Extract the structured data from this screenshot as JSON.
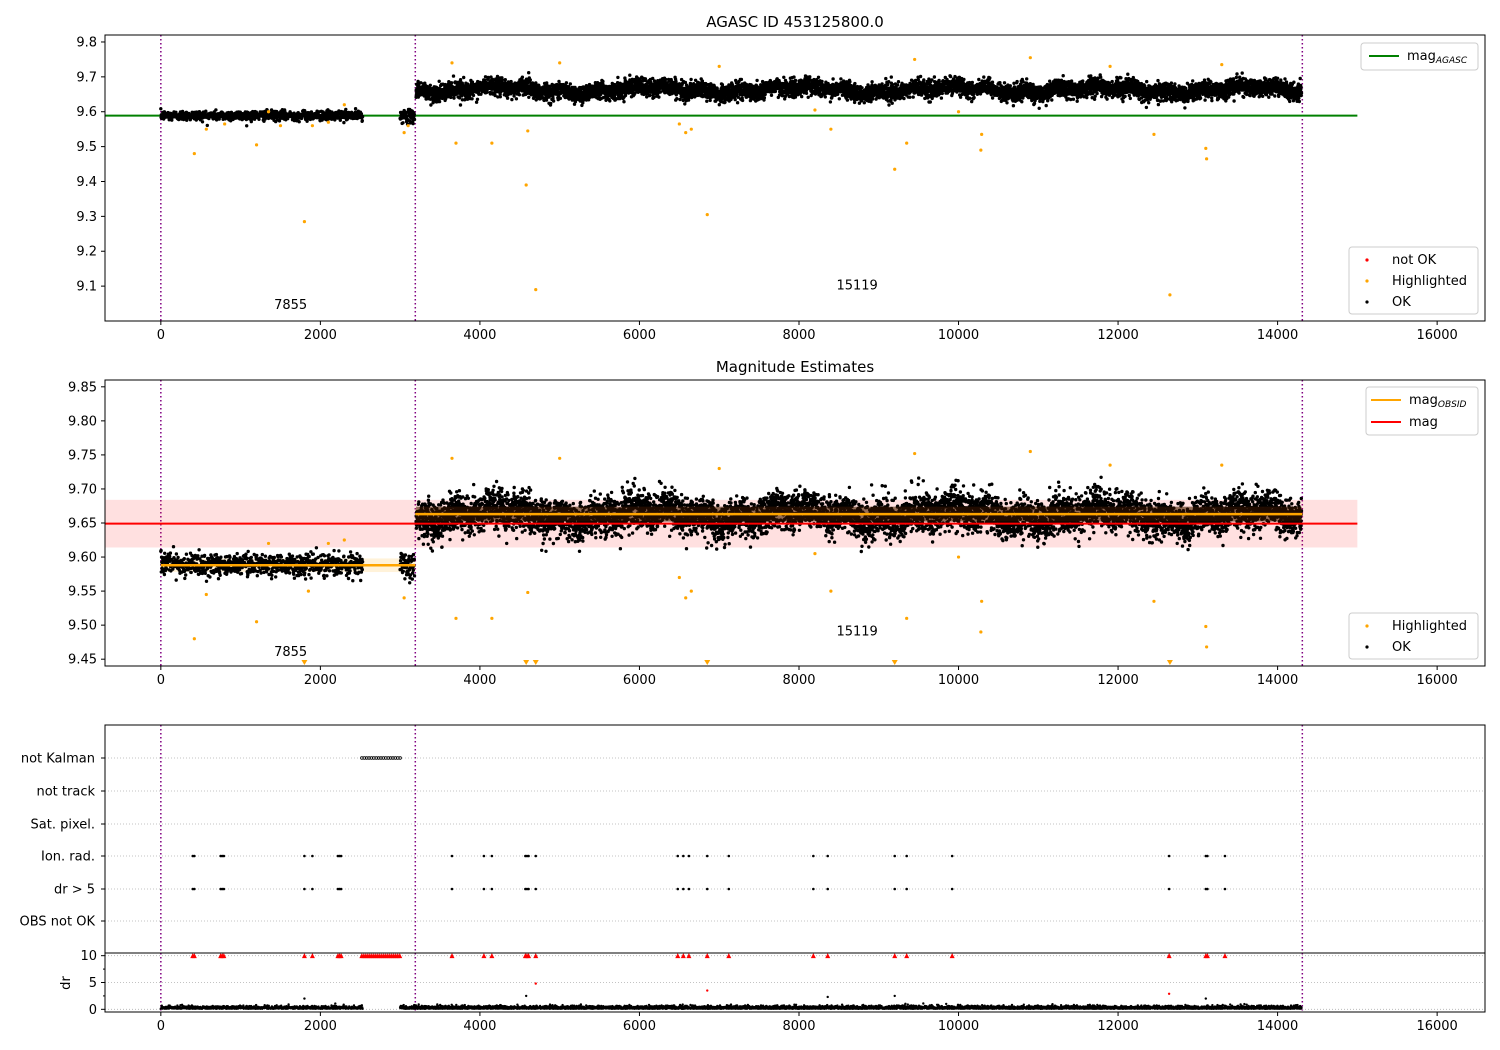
{
  "chart_data": [
    {
      "type": "scatter",
      "title": "AGASC ID 453125800.0",
      "xlim": [
        -700,
        16600
      ],
      "ylim": [
        9.0,
        9.82
      ],
      "xticks": [
        0,
        2000,
        4000,
        6000,
        8000,
        10000,
        12000,
        14000,
        16000
      ],
      "yticks": [
        9.1,
        9.2,
        9.3,
        9.4,
        9.5,
        9.6,
        9.7,
        9.8
      ],
      "segment_boundaries": [
        0,
        3190,
        14310
      ],
      "obsid_labels": [
        {
          "text": "7855",
          "x": 1420,
          "y": 9.035
        },
        {
          "text": "15119",
          "x": 8470,
          "y": 9.09
        }
      ],
      "mag_agasc": {
        "value": 9.589,
        "x_range": [
          -700,
          15000
        ]
      },
      "series": [
        {
          "name": "not OK",
          "color": "#ff0000",
          "points": []
        },
        {
          "name": "Highlighted",
          "color": "#ffa500",
          "points": [
            [
              420,
              9.48
            ],
            [
              570,
              9.55
            ],
            [
              800,
              9.565
            ],
            [
              1200,
              9.505
            ],
            [
              1350,
              9.6
            ],
            [
              1500,
              9.56
            ],
            [
              1800,
              9.285
            ],
            [
              1900,
              9.56
            ],
            [
              2100,
              9.57
            ],
            [
              2300,
              9.62
            ],
            [
              3050,
              9.54
            ],
            [
              3100,
              9.56
            ],
            [
              3650,
              9.74
            ],
            [
              3700,
              9.51
            ],
            [
              4150,
              9.51
            ],
            [
              4580,
              9.39
            ],
            [
              4600,
              9.545
            ],
            [
              4700,
              9.09
            ],
            [
              5000,
              9.74
            ],
            [
              6500,
              9.565
            ],
            [
              6580,
              9.54
            ],
            [
              6650,
              9.55
            ],
            [
              6850,
              9.305
            ],
            [
              7000,
              9.73
            ],
            [
              8200,
              9.605
            ],
            [
              8400,
              9.55
            ],
            [
              9200,
              9.435
            ],
            [
              9350,
              9.51
            ],
            [
              9450,
              9.75
            ],
            [
              10000,
              9.6
            ],
            [
              10280,
              9.49
            ],
            [
              10290,
              9.535
            ],
            [
              10900,
              9.755
            ],
            [
              11900,
              9.73
            ],
            [
              12450,
              9.535
            ],
            [
              12650,
              9.075
            ],
            [
              13100,
              9.495
            ],
            [
              13110,
              9.465
            ],
            [
              13300,
              9.735
            ]
          ]
        },
        {
          "name": "OK",
          "color": "#000000",
          "points": []
        }
      ],
      "legend": [
        {
          "label": "mag",
          "sub": "AGASC",
          "color": "#008000"
        }
      ],
      "legend_points": [
        "not OK",
        "Highlighted",
        "OK"
      ]
    },
    {
      "type": "scatter",
      "title": "Magnitude Estimates",
      "xlim": [
        -700,
        16600
      ],
      "ylim": [
        9.44,
        9.86
      ],
      "xticks": [
        0,
        2000,
        4000,
        6000,
        8000,
        10000,
        12000,
        14000,
        16000
      ],
      "yticks": [
        9.45,
        9.5,
        9.55,
        9.6,
        9.65,
        9.7,
        9.75,
        9.8,
        9.85
      ],
      "ytick_labels": [
        "9.45",
        "9.50",
        "9.55",
        "9.60",
        "9.65",
        "9.70",
        "9.75",
        "9.80",
        "9.85"
      ],
      "segment_boundaries": [
        0,
        3190,
        14310
      ],
      "obsid_labels": [
        {
          "text": "7855",
          "x": 1420,
          "y": 9.455
        },
        {
          "text": "15119",
          "x": 8470,
          "y": 9.485
        }
      ],
      "mag": {
        "value": 9.649,
        "band": [
          9.614,
          9.684
        ],
        "x_range": [
          -700,
          15000
        ]
      },
      "mag_obsid": [
        {
          "x_range": [
            0,
            3190
          ],
          "value": 9.588,
          "band": [
            9.578,
            9.598
          ]
        },
        {
          "x_range": [
            3190,
            14310
          ],
          "value": 9.663,
          "band": [
            9.653,
            9.673
          ]
        }
      ],
      "highlighted_points": [
        [
          420,
          9.48
        ],
        [
          570,
          9.545
        ],
        [
          1200,
          9.505
        ],
        [
          1350,
          9.62
        ],
        [
          1850,
          9.55
        ],
        [
          2100,
          9.62
        ],
        [
          2300,
          9.625
        ],
        [
          3050,
          9.54
        ],
        [
          3650,
          9.745
        ],
        [
          3700,
          9.51
        ],
        [
          4150,
          9.51
        ],
        [
          4600,
          9.548
        ],
        [
          5000,
          9.745
        ],
        [
          6500,
          9.57
        ],
        [
          6580,
          9.54
        ],
        [
          6650,
          9.55
        ],
        [
          7000,
          9.73
        ],
        [
          8200,
          9.605
        ],
        [
          8400,
          9.55
        ],
        [
          9350,
          9.51
        ],
        [
          9450,
          9.752
        ],
        [
          10000,
          9.6
        ],
        [
          10280,
          9.49
        ],
        [
          10290,
          9.535
        ],
        [
          10900,
          9.755
        ],
        [
          11900,
          9.735
        ],
        [
          12450,
          9.535
        ],
        [
          13100,
          9.498
        ],
        [
          13110,
          9.468
        ],
        [
          13300,
          9.735
        ]
      ],
      "below_range_x": [
        1800,
        4580,
        4700,
        6850,
        9200,
        12650
      ],
      "legend": [
        {
          "label": "mag",
          "sub": "OBSID",
          "color": "#ffa500"
        },
        {
          "label": "mag",
          "sub": "",
          "color": "#ff0000"
        }
      ],
      "legend_points": [
        "Highlighted",
        "OK"
      ]
    },
    {
      "type": "scatter",
      "xlim": [
        -700,
        16600
      ],
      "xticks": [
        0,
        2000,
        4000,
        6000,
        8000,
        10000,
        12000,
        14000,
        16000
      ],
      "segment_boundaries": [
        0,
        3190,
        14310
      ],
      "flag_rows": [
        "not Kalman",
        "not track",
        "Sat. pixel.",
        "Ion. rad.",
        "dr > 5",
        "OBS not OK"
      ],
      "flags": {
        "not Kalman": {
          "ranges": [
            [
              2520,
              3000
            ]
          ]
        },
        "Ion. rad.": {
          "x": [
            400,
            420,
            750,
            770,
            790,
            1800,
            1900,
            2220,
            2240,
            2260,
            3650,
            4050,
            4150,
            4570,
            4590,
            4610,
            4700,
            6480,
            6550,
            6620,
            6850,
            7120,
            8180,
            8360,
            9200,
            9350,
            9920,
            12640,
            13100,
            13120,
            13340
          ]
        },
        "dr > 5": {
          "x": [
            400,
            420,
            750,
            770,
            790,
            1800,
            1900,
            2220,
            2240,
            2260,
            3650,
            4050,
            4150,
            4570,
            4590,
            4610,
            4700,
            6480,
            6550,
            6620,
            6850,
            7120,
            8180,
            8360,
            9200,
            9350,
            9920,
            12640,
            13100,
            13120,
            13340
          ]
        }
      },
      "dr": {
        "ylabel": "dr",
        "ylim": [
          -0.5,
          10.5
        ],
        "yticks": [
          0,
          5,
          10
        ],
        "ytick_labels": [
          "0",
          "5",
          "10"
        ],
        "clipped_x": [
          400,
          420,
          750,
          770,
          790,
          1800,
          1900,
          2220,
          2240,
          2260,
          3650,
          4050,
          4150,
          4570,
          4590,
          4610,
          4700,
          6480,
          6550,
          6620,
          6850,
          7120,
          8180,
          8360,
          9200,
          9350,
          9920,
          12640,
          13100,
          13120,
          13340
        ],
        "clipped_ranges": [
          [
            2520,
            3000
          ]
        ],
        "red_points": [
          [
            4700,
            4.8
          ],
          [
            6850,
            3.5
          ],
          [
            12640,
            2.9
          ]
        ],
        "black_outliers": [
          [
            1800,
            2.0
          ],
          [
            4580,
            2.5
          ],
          [
            8360,
            2.3
          ],
          [
            9200,
            2.5
          ],
          [
            13100,
            2.0
          ]
        ]
      }
    }
  ]
}
